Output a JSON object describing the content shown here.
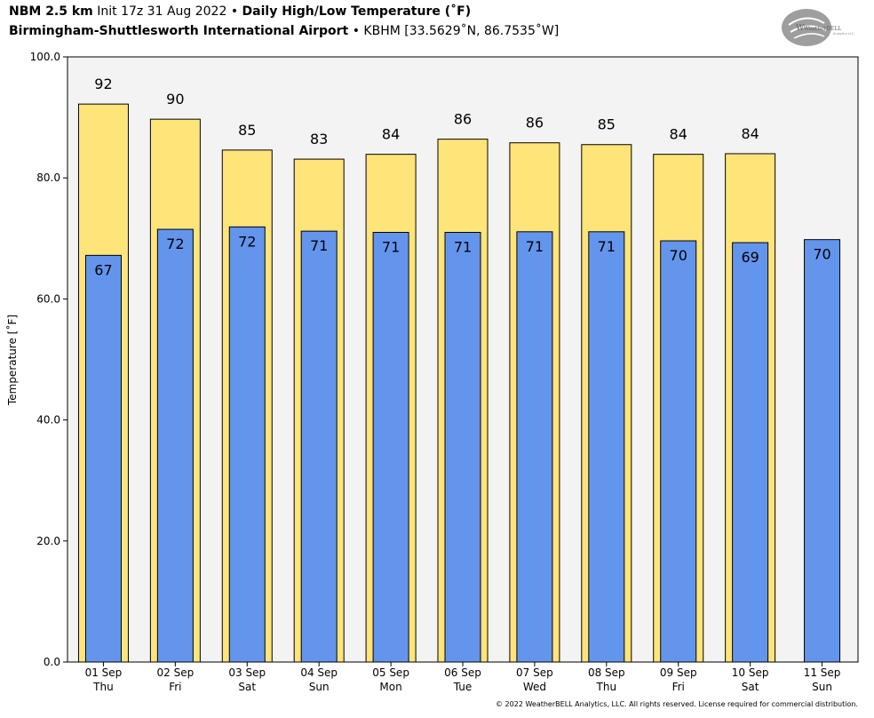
{
  "header": {
    "model": "NBM 2.5 km",
    "init": "Init 17z 31 Aug 2022",
    "sep": "•",
    "product": "Daily High/Low Temperature (˚F)",
    "station_name": "Birmingham-Shuttlesworth International Airport",
    "station_info": "KBHM [33.5629˚N, 86.7535˚W]"
  },
  "logo": {
    "text": "WeatherBELL",
    "subtext": "Analytics LLC"
  },
  "footer": {
    "copyright": "© 2022 WeatherBELL Analytics, LLC. All rights reserved. License required for commercial distribution."
  },
  "colors": {
    "high": "#ffe47a",
    "low": "#6495ed",
    "plot_bg": "#f3f3f3",
    "outline": "#000000"
  },
  "chart_data": {
    "type": "bar",
    "ylabel": "Temperature [˚F]",
    "ylim": [
      0,
      100
    ],
    "yticks": [
      "0.0",
      "20.0",
      "40.0",
      "60.0",
      "80.0",
      "100.0"
    ],
    "categories": [
      {
        "date": "01 Sep",
        "day": "Thu"
      },
      {
        "date": "02 Sep",
        "day": "Fri"
      },
      {
        "date": "03 Sep",
        "day": "Sat"
      },
      {
        "date": "04 Sep",
        "day": "Sun"
      },
      {
        "date": "05 Sep",
        "day": "Mon"
      },
      {
        "date": "06 Sep",
        "day": "Tue"
      },
      {
        "date": "07 Sep",
        "day": "Wed"
      },
      {
        "date": "08 Sep",
        "day": "Thu"
      },
      {
        "date": "09 Sep",
        "day": "Fri"
      },
      {
        "date": "10 Sep",
        "day": "Sat"
      },
      {
        "date": "11 Sep",
        "day": "Sun"
      }
    ],
    "series": [
      {
        "key": "high",
        "values": [
          92.2,
          89.7,
          84.6,
          83.1,
          83.9,
          86.4,
          85.8,
          85.5,
          83.9,
          84.0,
          null
        ],
        "labels": [
          "92",
          "90",
          "85",
          "83",
          "84",
          "86",
          "86",
          "85",
          "84",
          "84",
          ""
        ]
      },
      {
        "key": "low",
        "values": [
          67.2,
          71.5,
          71.9,
          71.2,
          71.0,
          71.0,
          71.1,
          71.1,
          69.6,
          69.3,
          69.8
        ],
        "labels": [
          "67",
          "72",
          "72",
          "71",
          "71",
          "71",
          "71",
          "71",
          "70",
          "69",
          "70"
        ]
      }
    ]
  }
}
